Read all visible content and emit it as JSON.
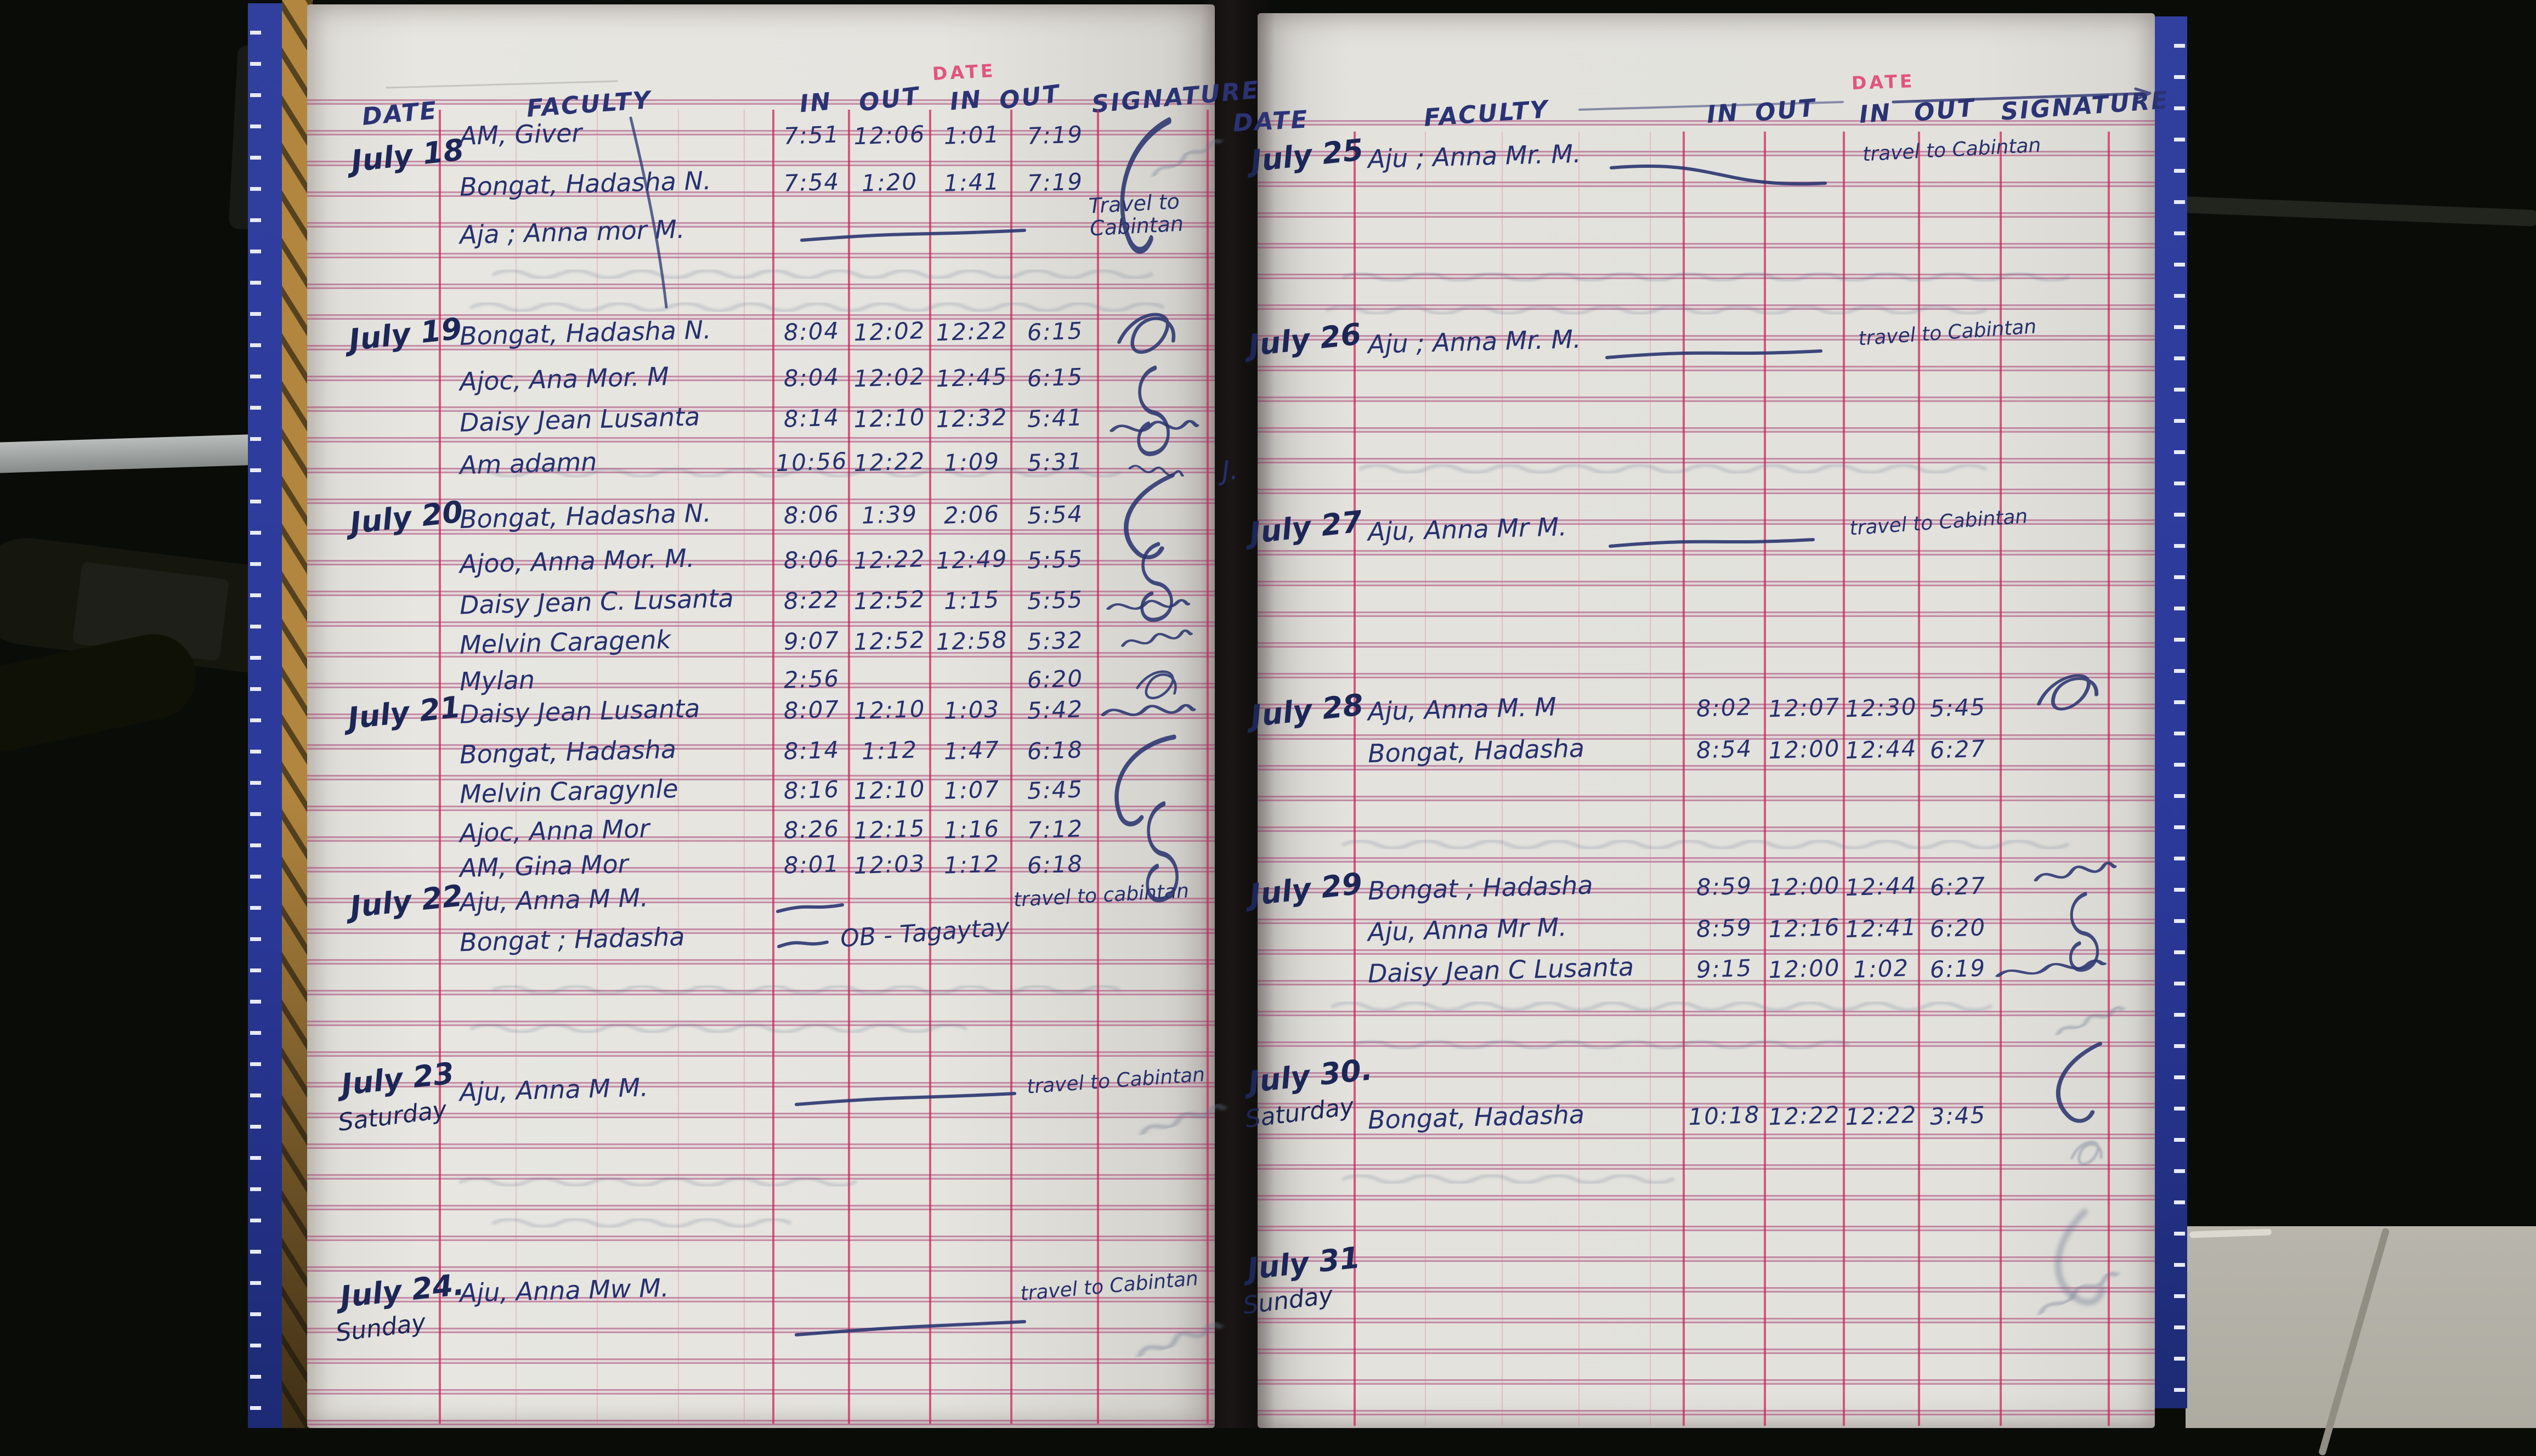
{
  "book": {
    "gutter_note": "J.",
    "left_page": {
      "printed_date_label": "DATE",
      "headers": {
        "date": "DATE",
        "faculty": "FACULTY",
        "in1": "IN",
        "out1": "OUT",
        "in2": "IN",
        "out2": "OUT",
        "signature": "SIGNATURE"
      },
      "entries": [
        {
          "date": "July 18",
          "day": "",
          "rows": [
            {
              "name": "AM, Giver",
              "in1": "7:51",
              "out1": "12:06",
              "in2": "1:01",
              "out2": "7:19",
              "note": ""
            },
            {
              "name": "Bongat, Hadasha N.",
              "in1": "7:54",
              "out1": "1:20",
              "in2": "1:41",
              "out2": "7:19",
              "note": ""
            },
            {
              "name": "Aja ; Anna mor M.",
              "in1": "",
              "out1": "",
              "in2": "",
              "out2": "",
              "note": "Travel to Cabintan"
            }
          ]
        },
        {
          "date": "July 19",
          "day": "",
          "rows": [
            {
              "name": "Bongat, Hadasha N.",
              "in1": "8:04",
              "out1": "12:02",
              "in2": "12:22",
              "out2": "6:15",
              "note": ""
            },
            {
              "name": "Ajoc, Ana Mor. M",
              "in1": "8:04",
              "out1": "12:02",
              "in2": "12:45",
              "out2": "6:15",
              "note": ""
            },
            {
              "name": "Daisy Jean Lusanta",
              "in1": "8:14",
              "out1": "12:10",
              "in2": "12:32",
              "out2": "5:41",
              "note": ""
            },
            {
              "name": "Am adamn",
              "in1": "10:56",
              "out1": "12:22",
              "in2": "1:09",
              "out2": "5:31",
              "note": ""
            }
          ]
        },
        {
          "date": "July 20",
          "day": "",
          "rows": [
            {
              "name": "Bongat, Hadasha N.",
              "in1": "8:06",
              "out1": "1:39",
              "in2": "2:06",
              "out2": "5:54",
              "note": ""
            },
            {
              "name": "Ajoo, Anna Mor. M.",
              "in1": "8:06",
              "out1": "12:22",
              "in2": "12:49",
              "out2": "5:55",
              "note": ""
            },
            {
              "name": "Daisy Jean C. Lusanta",
              "in1": "8:22",
              "out1": "12:52",
              "in2": "1:15",
              "out2": "5:55",
              "note": ""
            },
            {
              "name": "Melvin Caragenk",
              "in1": "9:07",
              "out1": "12:52",
              "in2": "12:58",
              "out2": "5:32",
              "note": ""
            },
            {
              "name": "Mylan",
              "in1": "2:56",
              "out1": "",
              "in2": "",
              "out2": "6:20",
              "note": ""
            }
          ]
        },
        {
          "date": "July 21",
          "day": "",
          "rows": [
            {
              "name": "Daisy Jean Lusanta",
              "in1": "8:07",
              "out1": "12:10",
              "in2": "1:03",
              "out2": "5:42",
              "note": ""
            },
            {
              "name": "Bongat, Hadasha",
              "in1": "8:14",
              "out1": "1:12",
              "in2": "1:47",
              "out2": "6:18",
              "note": ""
            },
            {
              "name": "Melvin Caragynle",
              "in1": "8:16",
              "out1": "12:10",
              "in2": "1:07",
              "out2": "5:45",
              "note": ""
            },
            {
              "name": "Ajoc, Anna Mor",
              "in1": "8:26",
              "out1": "12:15",
              "in2": "1:16",
              "out2": "7:12",
              "note": ""
            },
            {
              "name": "AM, Gina Mor",
              "in1": "8:01",
              "out1": "12:03",
              "in2": "1:12",
              "out2": "6:18",
              "note": ""
            }
          ]
        },
        {
          "date": "July 22",
          "day": "",
          "rows": [
            {
              "name": "Aju, Anna M M.",
              "in1": "",
              "out1": "",
              "in2": "",
              "out2": "",
              "note": "travel to cabintan"
            },
            {
              "name": "Bongat ; Hadasha",
              "in1": "",
              "out1": "",
              "in2": "",
              "out2": "",
              "note": "OB - Tagaytay"
            }
          ]
        },
        {
          "date": "July 23",
          "day": "Saturday",
          "rows": [
            {
              "name": "Aju, Anna M M.",
              "in1": "",
              "out1": "",
              "in2": "",
              "out2": "",
              "note": "travel to Cabintan"
            }
          ]
        },
        {
          "date": "July 24.",
          "day": "Sunday",
          "rows": [
            {
              "name": "Aju, Anna Mw M.",
              "in1": "",
              "out1": "",
              "in2": "",
              "out2": "",
              "note": "travel to Cabintan"
            }
          ]
        }
      ]
    },
    "right_page": {
      "printed_date_label": "DATE",
      "headers": {
        "date": "DATE",
        "faculty": "FACULTY",
        "in1": "IN",
        "out1": "OUT",
        "in2": "IN",
        "out2": "OUT",
        "signature": "SIGNATURE"
      },
      "entries": [
        {
          "date": "July 25",
          "day": "",
          "rows": [
            {
              "name": "Aju ; Anna Mr. M.",
              "in1": "",
              "out1": "",
              "in2": "",
              "out2": "",
              "note": "travel to Cabintan"
            }
          ]
        },
        {
          "date": "July 26",
          "day": "",
          "rows": [
            {
              "name": "Aju ; Anna Mr. M.",
              "in1": "",
              "out1": "",
              "in2": "",
              "out2": "",
              "note": "travel to Cabintan"
            }
          ]
        },
        {
          "date": "July 27",
          "day": "",
          "rows": [
            {
              "name": "Aju, Anna Mr M.",
              "in1": "",
              "out1": "",
              "in2": "",
              "out2": "",
              "note": "travel to Cabintan"
            }
          ]
        },
        {
          "date": "July 28",
          "day": "",
          "rows": [
            {
              "name": "Aju, Anna M. M",
              "in1": "8:02",
              "out1": "12:07",
              "in2": "12:30",
              "out2": "5:45",
              "note": ""
            },
            {
              "name": "Bongat, Hadasha",
              "in1": "8:54",
              "out1": "12:00",
              "in2": "12:44",
              "out2": "6:27",
              "note": ""
            }
          ]
        },
        {
          "date": "July 29",
          "day": "",
          "rows": [
            {
              "name": "Bongat ; Hadasha",
              "in1": "8:59",
              "out1": "12:00",
              "in2": "12:44",
              "out2": "6:27",
              "note": ""
            },
            {
              "name": "Aju, Anna Mr M.",
              "in1": "8:59",
              "out1": "12:16",
              "in2": "12:41",
              "out2": "6:20",
              "note": ""
            },
            {
              "name": "Daisy Jean C Lusanta",
              "in1": "9:15",
              "out1": "12:00",
              "in2": "1:02",
              "out2": "6:19",
              "note": ""
            }
          ]
        },
        {
          "date": "July 30.",
          "day": "Saturday",
          "rows": [
            {
              "name": "Bongat, Hadasha",
              "in1": "10:18",
              "out1": "12:22",
              "in2": "12:22",
              "out2": "3:45",
              "note": ""
            }
          ]
        },
        {
          "date": "July 31",
          "day": "Sunday",
          "rows": []
        }
      ]
    }
  },
  "colors": {
    "ink": "#26306e",
    "ruling_pink": "#a3356e",
    "ruling_red": "#cd2356",
    "printed_pink": "#e0557f",
    "tape_blue": "#2b399b",
    "kraft": "#b2863e",
    "paper": "#e5e4df"
  }
}
